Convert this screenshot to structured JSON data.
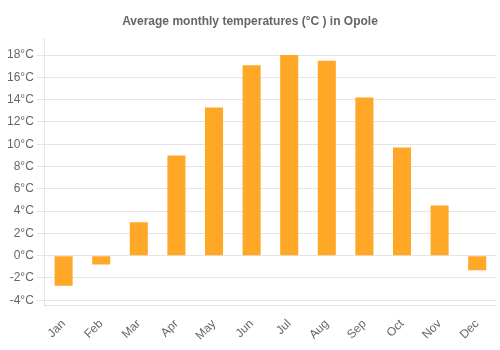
{
  "chart_data": {
    "type": "bar",
    "title": "Average monthly temperatures (°C ) in Opole",
    "categories": [
      "Jan",
      "Feb",
      "Mar",
      "Apr",
      "May",
      "Jun",
      "Jul",
      "Aug",
      "Sep",
      "Oct",
      "Nov",
      "Dec"
    ],
    "values": [
      -2.7,
      -0.8,
      3.0,
      9.0,
      13.3,
      17.1,
      18.0,
      17.5,
      14.2,
      9.7,
      4.5,
      -1.3
    ],
    "color": "#FFA726",
    "ylim": [
      -4.5,
      19.5
    ],
    "yticks": [
      {
        "value": -4,
        "label": "-4°C"
      },
      {
        "value": -2,
        "label": "-2°C"
      },
      {
        "value": 0,
        "label": "0°C"
      },
      {
        "value": 2,
        "label": "2°C"
      },
      {
        "value": 4,
        "label": "4°C"
      },
      {
        "value": 6,
        "label": "6°C"
      },
      {
        "value": 8,
        "label": "8°C"
      },
      {
        "value": 10,
        "label": "10°C"
      },
      {
        "value": 12,
        "label": "12°C"
      },
      {
        "value": 14,
        "label": "14°C"
      },
      {
        "value": 16,
        "label": "16°C"
      },
      {
        "value": 18,
        "label": "18°C"
      }
    ],
    "grid": true
  }
}
